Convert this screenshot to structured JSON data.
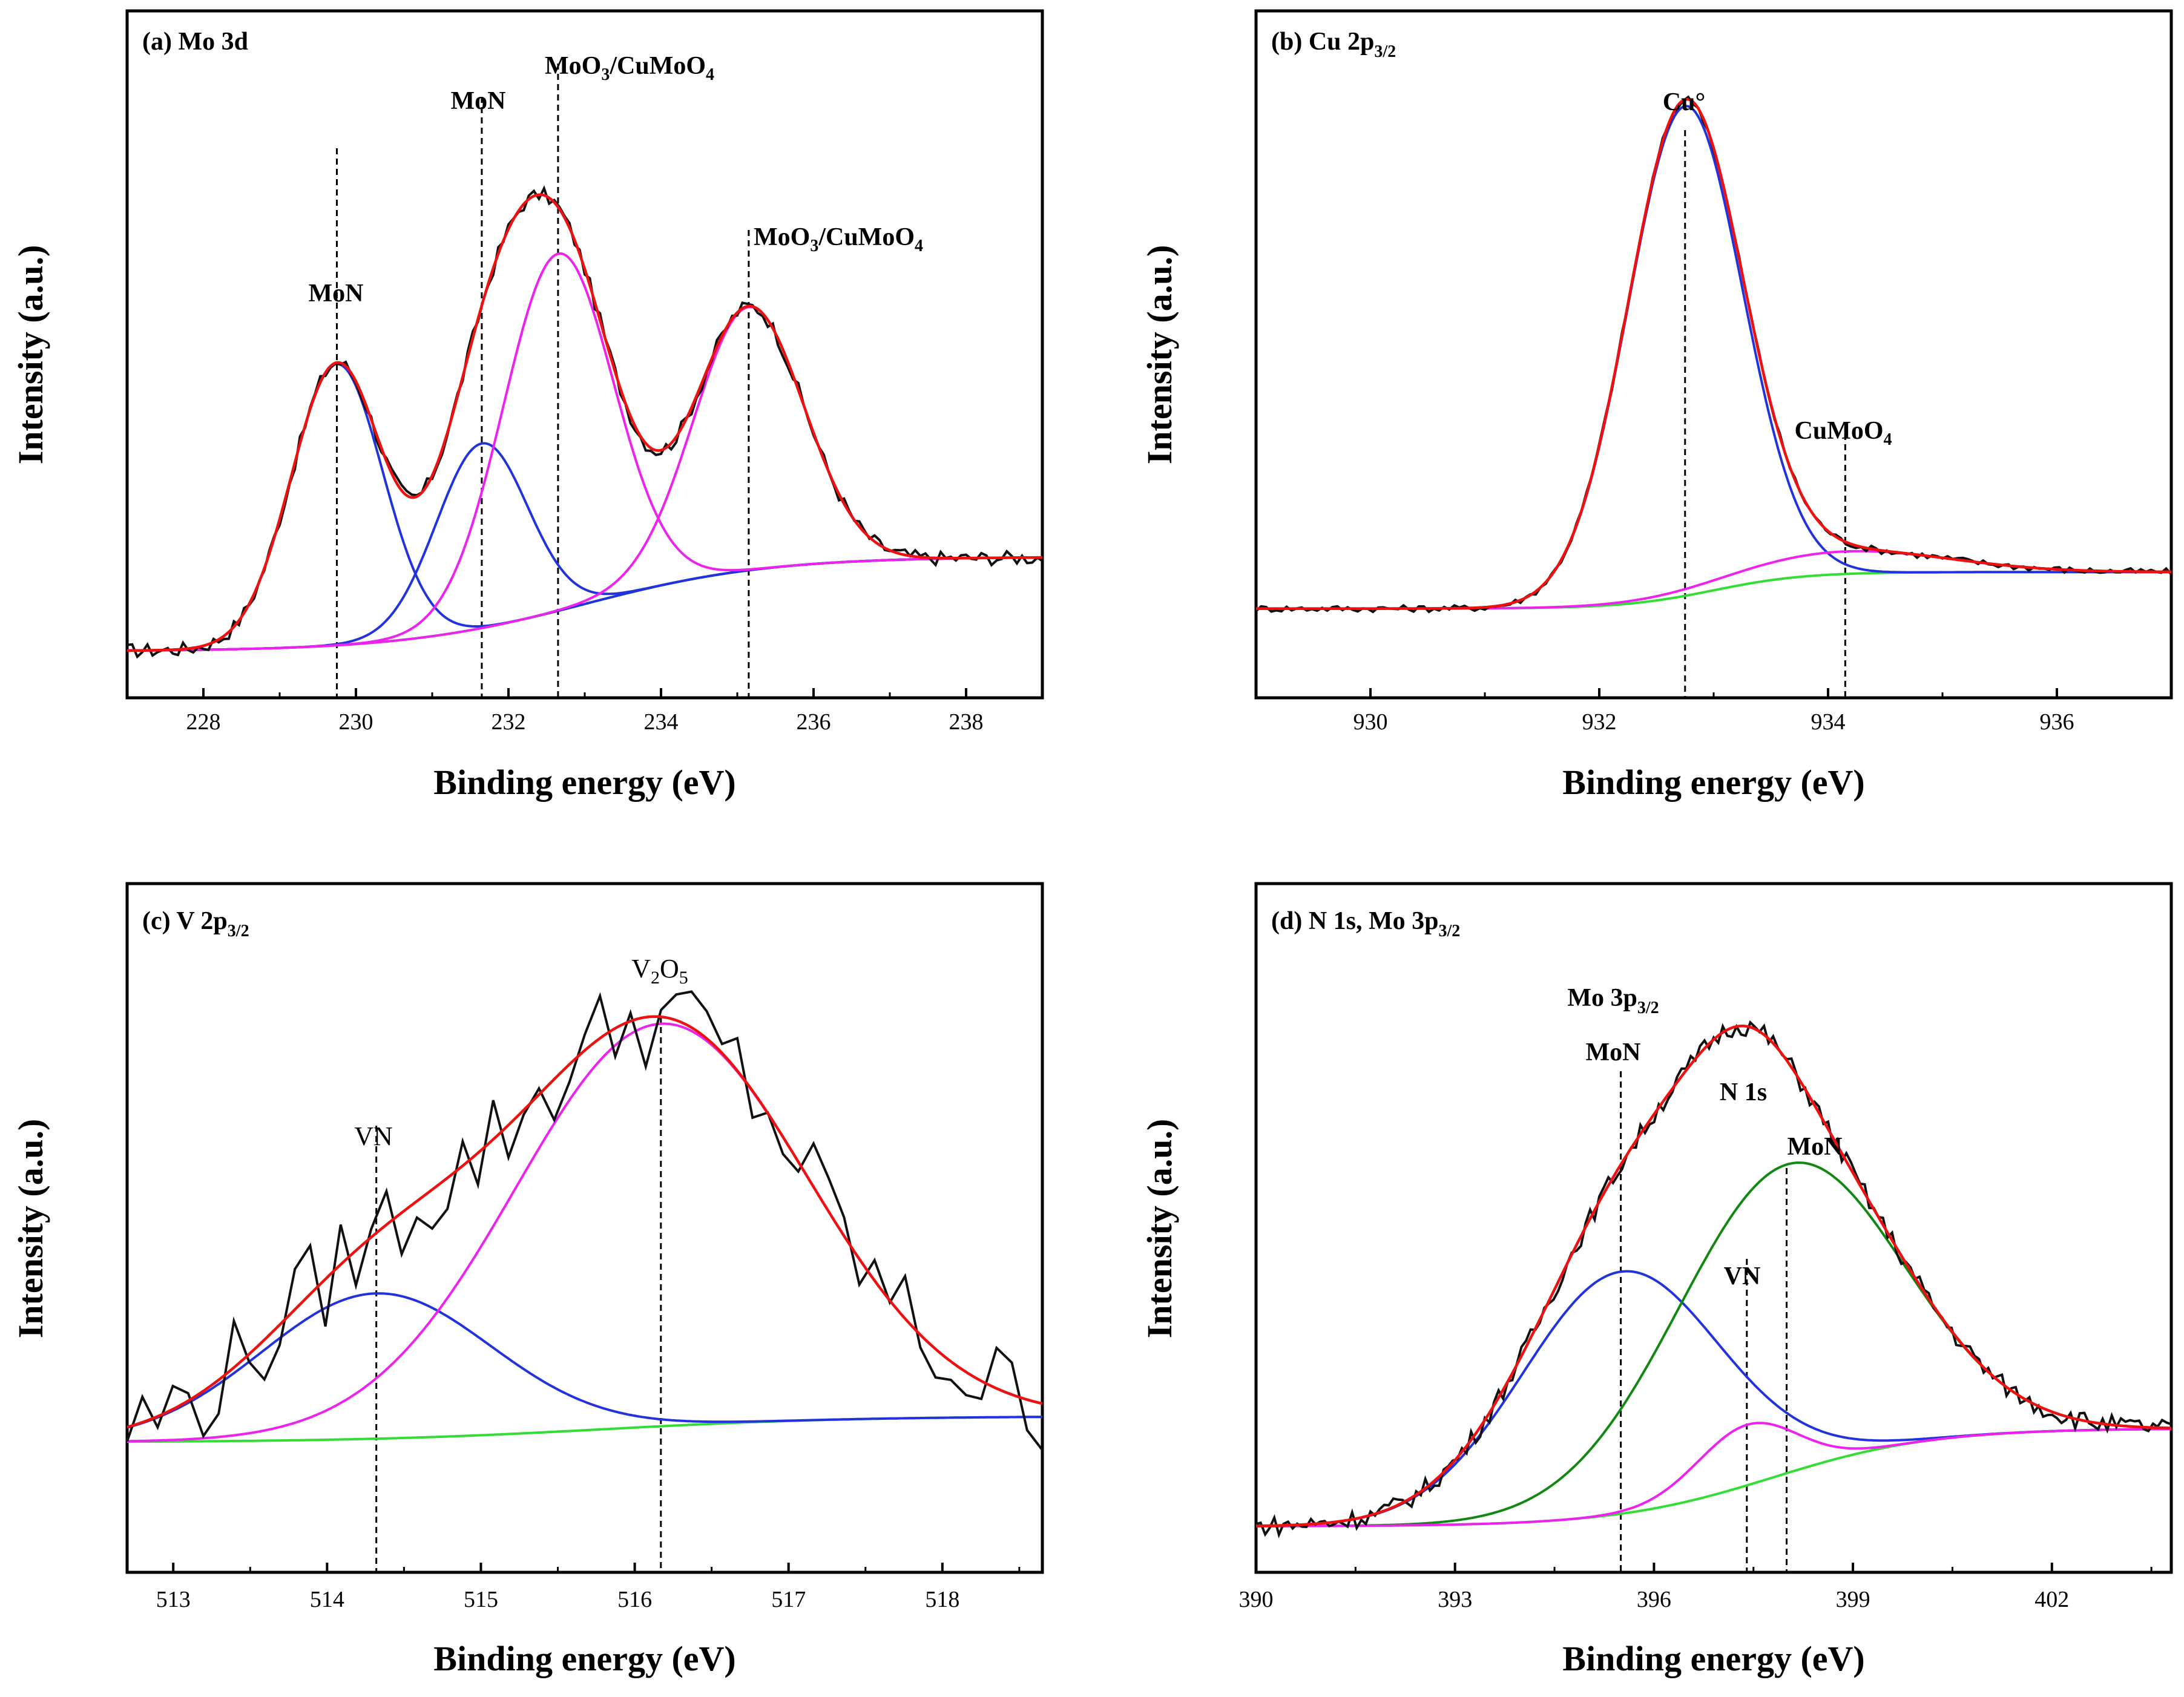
{
  "figure": {
    "axis_titles": {
      "x": "Binding energy (eV)",
      "y": "Intensity (a.u.)"
    }
  },
  "chart_data": [
    {
      "id": "a",
      "type": "line",
      "title": "(a) Mo 3d",
      "xlabel": "Binding energy (eV)",
      "ylabel": "Intensity (a.u.)",
      "xlim": [
        227,
        239
      ],
      "ylim": [
        0,
        1
      ],
      "xticks": [
        228,
        230,
        232,
        234,
        236,
        238
      ],
      "x_reversed": false,
      "components": [
        {
          "name": "MoN",
          "center": 229.75,
          "height": 0.465,
          "width": 0.6
        },
        {
          "name": "MoN",
          "center": 231.65,
          "height": 0.305,
          "width": 0.6
        },
        {
          "name": "MoO3/CuMoO4",
          "center": 232.65,
          "height": 0.59,
          "width": 0.72
        },
        {
          "name": "MoO3/CuMoO4",
          "center": 235.15,
          "height": 0.435,
          "width": 0.72
        }
      ],
      "background": {
        "start": 0.004,
        "end": 0.16,
        "onset": 233.0,
        "width": 1.2
      },
      "annotations": [
        {
          "label": "MoN",
          "x": 229.75
        },
        {
          "label": "MoN",
          "x": 231.65
        },
        {
          "label": "MoO3/CuMoO4",
          "x": 232.65
        },
        {
          "label": "MoO3/CuMoO4",
          "x": 235.15
        }
      ]
    },
    {
      "id": "b",
      "type": "line",
      "title": "(b) Cu 2p3/2",
      "xlabel": "Binding energy (eV)",
      "ylabel": "Intensity (a.u.)",
      "xlim": [
        929,
        937
      ],
      "ylim": [
        0,
        1
      ],
      "xticks": [
        930,
        932,
        934,
        936
      ],
      "x_reversed": false,
      "components": [
        {
          "name": "Cu°",
          "center": 932.75,
          "height": 0.87,
          "width": 0.5
        },
        {
          "name": "CuMoO4",
          "center": 934.15,
          "height": 0.04,
          "width": 0.9
        }
      ],
      "background": {
        "start": 0.08,
        "end": 0.145,
        "onset": 933.0,
        "width": 0.4
      },
      "annotations": [
        {
          "label": "Cu°",
          "x": 932.75
        },
        {
          "label": "CuMoO4",
          "x": 934.15
        }
      ]
    },
    {
      "id": "c",
      "type": "line",
      "title": "(c) V 2p3/2",
      "xlabel": "Binding energy (eV)",
      "ylabel": "Intensity (a.u.)",
      "xlim": [
        512.7,
        518.65
      ],
      "ylim": [
        0,
        1
      ],
      "xticks": [
        513,
        514,
        515,
        516,
        517,
        518
      ],
      "x_reversed": false,
      "components": [
        {
          "name": "VN",
          "center": 514.32,
          "height": 0.24,
          "width": 0.75
        },
        {
          "name": "V2O5",
          "center": 516.17,
          "height": 0.665,
          "width": 0.95
        }
      ],
      "background": {
        "start": 0.157,
        "end": 0.2,
        "onset": 515.8,
        "width": 0.8
      },
      "annotations": [
        {
          "label": "VN",
          "x": 514.32
        },
        {
          "label": "V2O5",
          "x": 516.17
        }
      ]
    },
    {
      "id": "d",
      "type": "line",
      "title": "(d) N 1s, Mo 3p3/2",
      "xlabel": "Binding energy (eV)",
      "ylabel": "Intensity (a.u.)",
      "xlim": [
        390,
        403.8
      ],
      "ylim": [
        0,
        1
      ],
      "xticks": [
        390,
        393,
        396,
        399,
        402
      ],
      "x_reversed": false,
      "components": [
        {
          "name": "Mo 3p3/2 MoN",
          "center": 395.5,
          "height": 0.4,
          "width": 1.5
        },
        {
          "name": "N 1s MoN",
          "center": 398.0,
          "height": 0.51,
          "width": 1.7
        },
        {
          "name": "N 1s VN",
          "center": 397.4,
          "height": 0.1,
          "width": 0.75
        }
      ],
      "background": {
        "start": 0.018,
        "end": 0.18,
        "onset": 397.8,
        "width": 1.2
      },
      "annotations": [
        {
          "label": "Mo 3p3/2",
          "x": 395.5
        },
        {
          "label": "MoN",
          "x": 395.5
        },
        {
          "label": "N 1s",
          "x": 397.4
        },
        {
          "label": "VN",
          "x": 397.4
        },
        {
          "label": "MoN",
          "x": 398.0
        }
      ]
    }
  ]
}
